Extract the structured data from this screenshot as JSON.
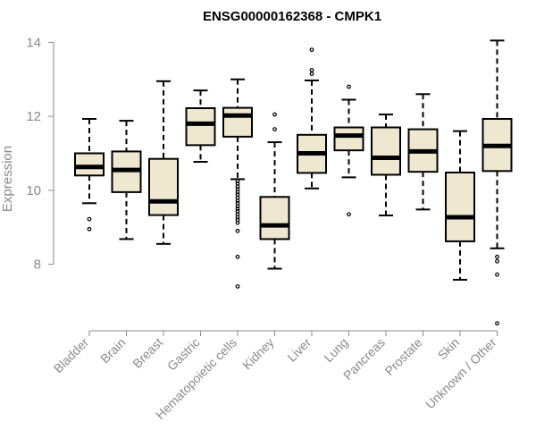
{
  "chart_data": {
    "type": "boxplot",
    "title": "ENSG00000162368 - CMPK1",
    "ylabel": "Expression",
    "xlabel": "",
    "ylim": [
      6.2,
      14.3
    ],
    "yticks": [
      8,
      10,
      12,
      14
    ],
    "grid": false,
    "box_fill": "#efe8d0",
    "stroke_color": "#000000",
    "categories": [
      "Bladder",
      "Brain",
      "Breast",
      "Gastric",
      "Hematopoietic cells",
      "Kidney",
      "Liver",
      "Lung",
      "Pancreas",
      "Prostate",
      "Skin",
      "Unknown / Other"
    ],
    "boxes": [
      {
        "whisker_low": 9.65,
        "q1": 10.4,
        "median": 10.63,
        "q3": 11.0,
        "whisker_high": 11.93,
        "outliers": [
          9.22,
          8.95
        ]
      },
      {
        "whisker_low": 8.68,
        "q1": 9.95,
        "median": 10.55,
        "q3": 11.05,
        "whisker_high": 11.88,
        "outliers": []
      },
      {
        "whisker_low": 8.55,
        "q1": 9.33,
        "median": 9.7,
        "q3": 10.85,
        "whisker_high": 12.95,
        "outliers": []
      },
      {
        "whisker_low": 10.77,
        "q1": 11.22,
        "median": 11.8,
        "q3": 12.22,
        "whisker_high": 12.7,
        "outliers": []
      },
      {
        "whisker_low": 10.3,
        "q1": 11.45,
        "median": 12.02,
        "q3": 12.23,
        "whisker_high": 13.0,
        "outliers": [
          10.25,
          10.18,
          10.1,
          10.03,
          9.95,
          9.88,
          9.8,
          9.72,
          9.65,
          9.57,
          9.5,
          9.43,
          9.35,
          9.27,
          9.2,
          9.12,
          8.9,
          8.2,
          7.4
        ]
      },
      {
        "whisker_low": 7.88,
        "q1": 8.68,
        "median": 9.05,
        "q3": 9.82,
        "whisker_high": 11.3,
        "outliers": [
          12.05,
          11.65
        ]
      },
      {
        "whisker_low": 10.05,
        "q1": 10.47,
        "median": 11.0,
        "q3": 11.5,
        "whisker_high": 12.97,
        "outliers": [
          13.8,
          13.25,
          13.15
        ]
      },
      {
        "whisker_low": 10.35,
        "q1": 11.08,
        "median": 11.48,
        "q3": 11.7,
        "whisker_high": 12.45,
        "outliers": [
          12.8,
          9.35
        ]
      },
      {
        "whisker_low": 9.32,
        "q1": 10.42,
        "median": 10.88,
        "q3": 11.7,
        "whisker_high": 12.05,
        "outliers": []
      },
      {
        "whisker_low": 9.48,
        "q1": 10.5,
        "median": 11.05,
        "q3": 11.65,
        "whisker_high": 12.6,
        "outliers": []
      },
      {
        "whisker_low": 7.58,
        "q1": 8.62,
        "median": 9.27,
        "q3": 10.48,
        "whisker_high": 11.6,
        "outliers": []
      },
      {
        "whisker_low": 8.43,
        "q1": 10.52,
        "median": 11.2,
        "q3": 11.93,
        "whisker_high": 14.05,
        "outliers": [
          8.2,
          8.08,
          7.72,
          6.4
        ]
      }
    ]
  }
}
